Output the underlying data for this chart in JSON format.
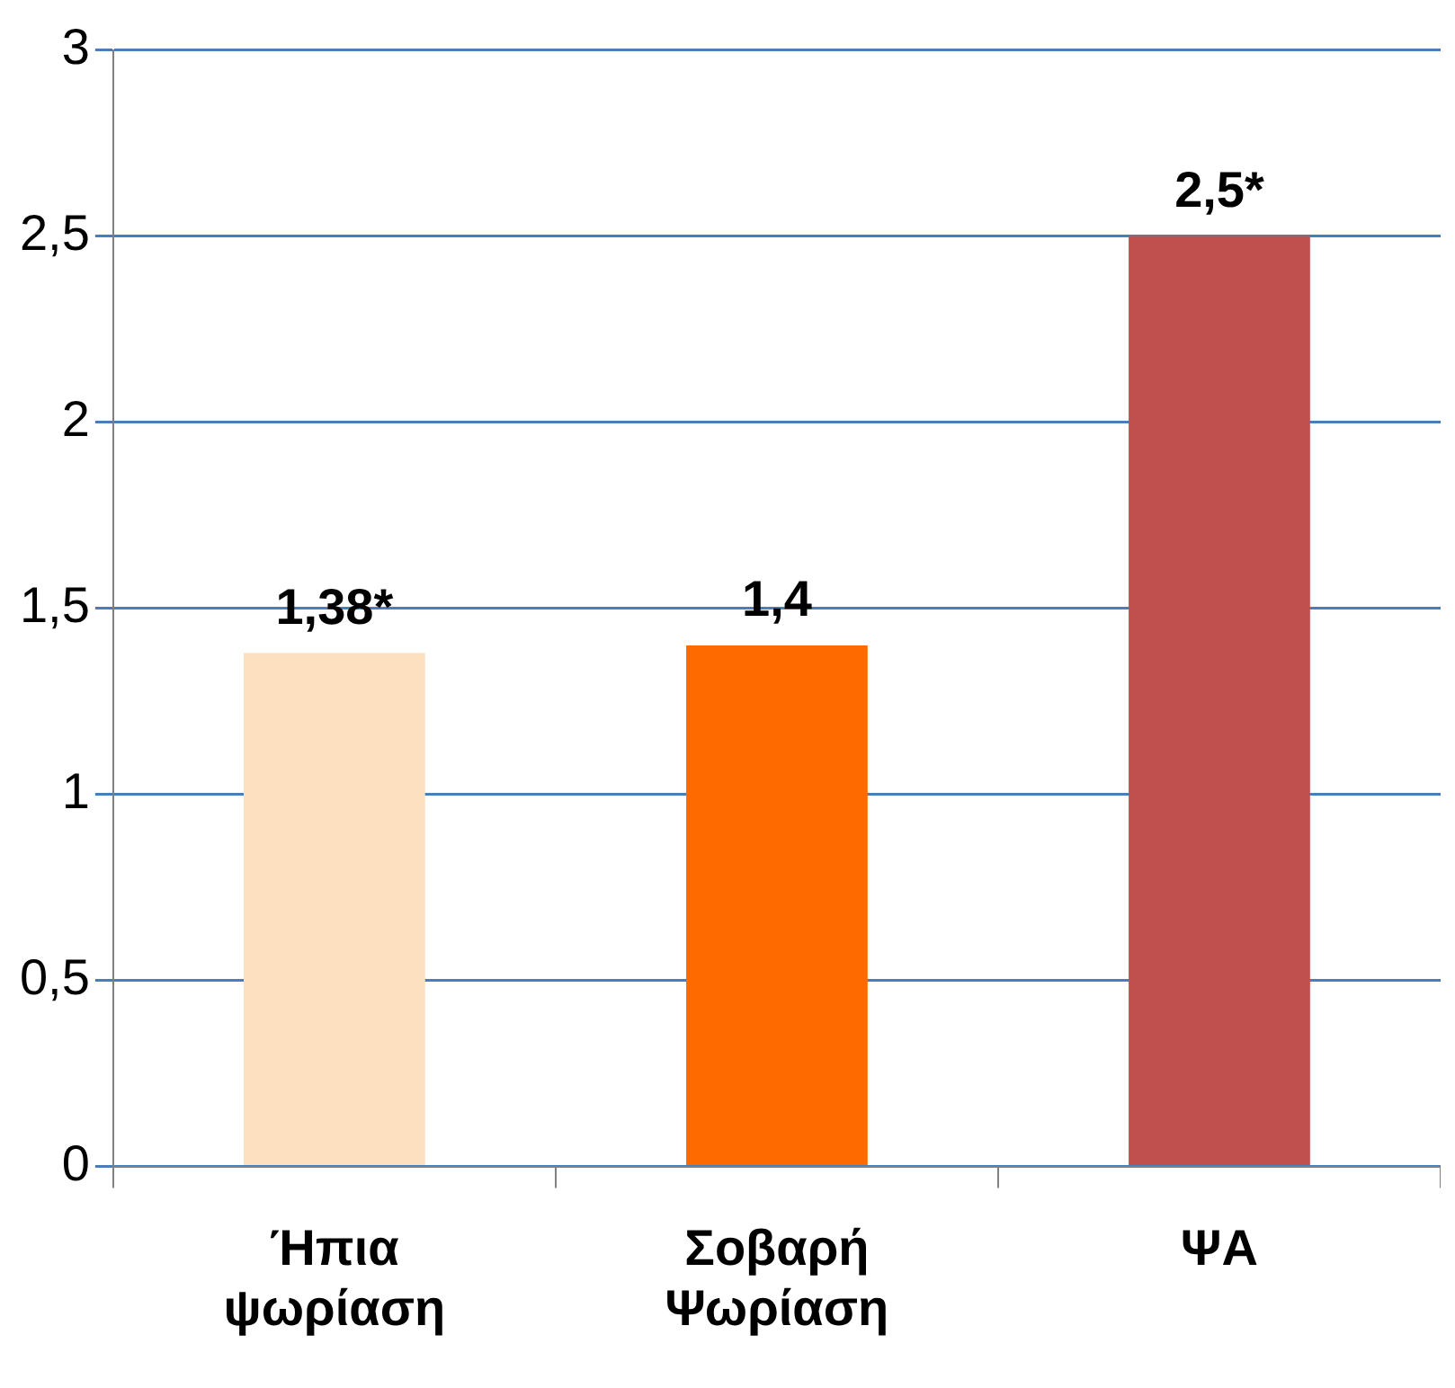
{
  "chart_data": {
    "type": "bar",
    "categories": [
      "Ήπια ψωρίαση",
      "Σοβαρή Ψωρίαση",
      "ΨΑ"
    ],
    "values": [
      1.38,
      1.4,
      2.5
    ],
    "colors": [
      "#fde0c0",
      "#ff6a00",
      "#c0504d"
    ],
    "value_labels": [
      "1,38*",
      "1,4",
      "2,5*"
    ],
    "ylim": [
      0,
      3
    ],
    "yticks": [
      0,
      {
        "value": 0.5,
        "label": "0,5"
      },
      1,
      {
        "value": 1.5,
        "label": "1,5"
      },
      2,
      {
        "value": 2.5,
        "label": "2,5"
      },
      3
    ],
    "grid": "y",
    "legend": false
  }
}
